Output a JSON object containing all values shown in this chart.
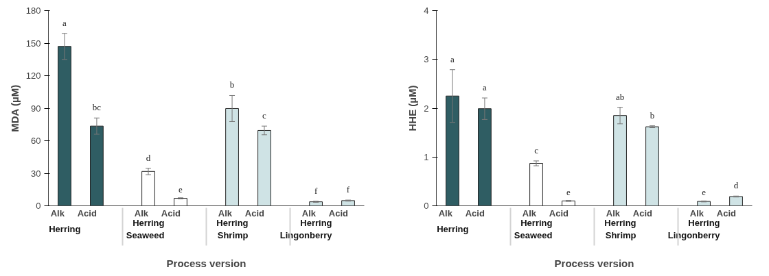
{
  "chart_data": [
    {
      "type": "bar",
      "ylabel": "MDA (µM)",
      "xlabel": "Process version",
      "categories": [
        "Alk",
        "Acid",
        "Alk",
        "Acid",
        "Alk",
        "Acid",
        "Alk",
        "Acid"
      ],
      "values": [
        147,
        73.5,
        31.7,
        6.9,
        89.7,
        69.5,
        3.7,
        4.8
      ],
      "colors": [
        "#2f5d63",
        "#2f5d63",
        "#ffffff",
        "#ffffff",
        "#cfe3e5",
        "#cfe3e5",
        "#cfe3e5",
        "#cfe3e5"
      ],
      "errors": [
        12,
        7.5,
        3,
        0.5,
        12,
        4,
        0.5,
        0.5
      ],
      "ylim": [
        0,
        180
      ],
      "yticks": [
        0,
        30,
        60,
        90,
        120,
        150,
        180
      ],
      "annotations": [
        "a",
        "bc",
        "d",
        "e",
        "b",
        "c",
        "f",
        "f",
        "Herring",
        "Herring\nSeaweed",
        "Herring\nShrimp",
        "Herring\nLingonberry"
      ]
    },
    {
      "type": "bar",
      "ylabel": "HHE (µM)",
      "xlabel": "Process version",
      "categories": [
        "Alk",
        "Acid",
        "Alk",
        "Acid",
        "Alk",
        "Acid",
        "Alk",
        "Acid"
      ],
      "values": [
        2.25,
        1.99,
        0.87,
        0.1,
        1.85,
        1.62,
        0.09,
        0.19
      ],
      "colors": [
        "#2f5d63",
        "#2f5d63",
        "#ffffff",
        "#ffffff",
        "#cfe3e5",
        "#cfe3e5",
        "#cfe3e5",
        "#cfe3e5"
      ],
      "errors": [
        0.54,
        0.22,
        0.05,
        0.01,
        0.17,
        0.02,
        0.01,
        0.01
      ],
      "ylim": [
        0,
        4
      ],
      "yticks": [
        0,
        1,
        2,
        3,
        4
      ],
      "annotations": [
        "a",
        "a",
        "c",
        "e",
        "ab",
        "b",
        "e",
        "d",
        "Herring",
        "Herring\nSeaweed",
        "Herring\nShrimp",
        "Herring\nLingonberry"
      ]
    }
  ]
}
